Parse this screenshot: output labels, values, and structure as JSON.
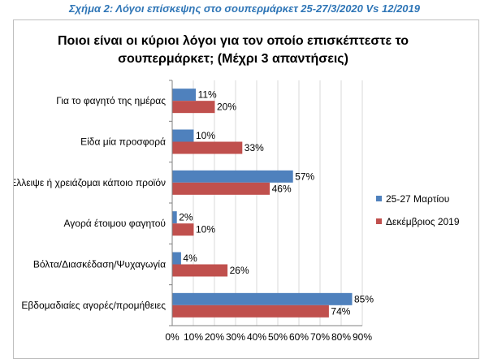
{
  "figure_caption": "Σχήμα 2: Λόγοι επίσκεψης στο σουπερμάρκετ 25-27/3/2020 Vs 12/2019",
  "chart_data": {
    "type": "bar",
    "orientation": "horizontal",
    "title": "Ποιοι είναι οι κύριοι λόγοι για τον οποίο επισκέπτεστε το σουπερμάρκετ; (Μέχρι 3 απαντήσεις)",
    "title_lines": [
      "Ποιοι είναι οι κύριοι λόγοι για τον οποίο επισκέπτεστε το",
      "σουπερμάρκετ; (Μέχρι 3 απαντήσεις)"
    ],
    "categories": [
      "Για το φαγητό της ημέρας",
      "Είδα μία προσφορά",
      "Έλλειψε ή χρειάζομαι κάποιο προϊόν",
      "Αγορά έτοιμου φαγητού",
      "Βόλτα/Διασκέδαση/Ψυχαγωγία",
      "Εβδομαδιαίες αγορές/προμήθειες"
    ],
    "series": [
      {
        "name": "25-27 Μαρτίου",
        "color": "#4f81bd",
        "values": [
          11,
          10,
          57,
          2,
          4,
          85
        ]
      },
      {
        "name": "Δεκέμβριος 2019",
        "color": "#c0504d",
        "values": [
          20,
          33,
          46,
          10,
          26,
          74
        ]
      }
    ],
    "xlim": [
      0,
      90
    ],
    "xticks": [
      0,
      10,
      20,
      30,
      40,
      50,
      60,
      70,
      80,
      90
    ],
    "tick_suffix": "%",
    "value_suffix": "%",
    "grid": true,
    "legend_position": "right"
  }
}
